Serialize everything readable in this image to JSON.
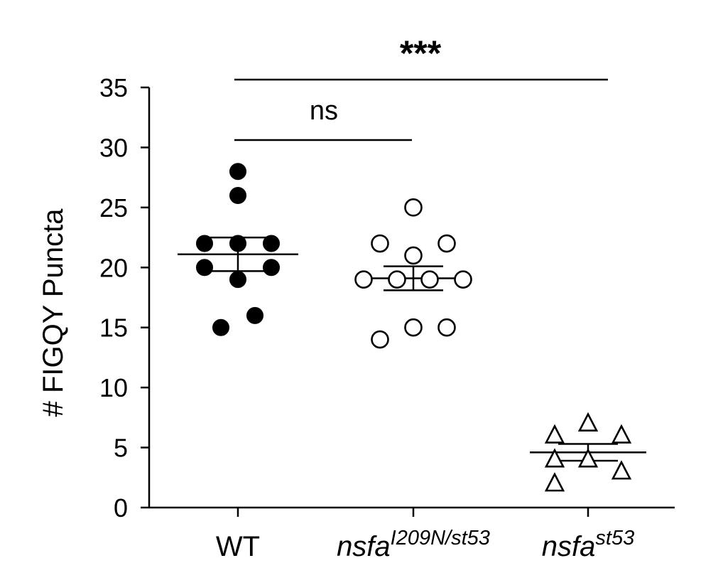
{
  "chart_data": {
    "type": "scatter",
    "ylabel": "# FIGQY Puncta",
    "xlabel": "",
    "title": "",
    "ylim": [
      0,
      35
    ],
    "yticks": [
      0,
      5,
      10,
      15,
      20,
      25,
      30,
      35
    ],
    "categories": [
      {
        "base": "WT",
        "sup": ""
      },
      {
        "base": "nsfa",
        "sup": "I209N/st53"
      },
      {
        "base": "nsfa",
        "sup": "st53"
      }
    ],
    "series": [
      {
        "category": "WT",
        "marker": "filled-circle",
        "values": [
          28,
          26,
          22,
          22,
          22,
          20,
          20,
          19,
          16,
          15
        ],
        "mean": 21.1,
        "sem_upper": 22.5,
        "sem_lower": 19.7
      },
      {
        "category": "nsfaI209N/st53",
        "marker": "open-circle",
        "values": [
          25,
          22,
          22,
          21,
          19,
          19,
          19,
          19,
          15,
          15,
          14
        ],
        "mean": 19.1,
        "sem_upper": 20.1,
        "sem_lower": 18.1
      },
      {
        "category": "nsfast53",
        "marker": "open-triangle",
        "values": [
          7,
          6,
          6,
          4,
          4,
          3,
          2
        ],
        "mean": 4.6,
        "sem_upper": 5.3,
        "sem_lower": 3.9
      }
    ],
    "significance": [
      {
        "from": 0,
        "to": 1,
        "label": "ns"
      },
      {
        "from": 0,
        "to": 2,
        "label": "***"
      }
    ]
  }
}
